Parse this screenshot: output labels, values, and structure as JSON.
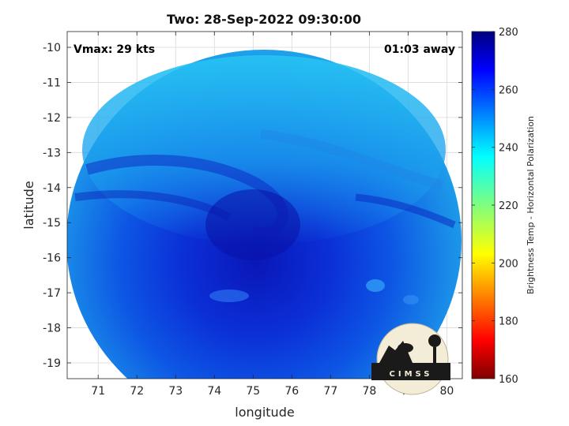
{
  "chart_data": {
    "type": "heatmap",
    "title": "Two: 28-Sep-2022 09:30:00",
    "xlabel": "longitude",
    "ylabel": "latitude",
    "xlim": [
      70.2,
      80.4
    ],
    "ylim": [
      -19.45,
      -9.55
    ],
    "x_ticks": [
      "71",
      "72",
      "73",
      "74",
      "75",
      "76",
      "77",
      "78",
      "79",
      "80"
    ],
    "y_ticks": [
      "-10",
      "-11",
      "-12",
      "-13",
      "-14",
      "-15",
      "-16",
      "-17",
      "-18",
      "-19"
    ],
    "annotations": {
      "left": "Vmax: 29 kts",
      "right": "01:03 away"
    },
    "colorbar": {
      "label": "Brightness Temp - Horizontal Polarization",
      "range": [
        160,
        280
      ],
      "ticks": [
        "160",
        "180",
        "200",
        "220",
        "240",
        "260",
        "280"
      ],
      "colormap": "jet"
    },
    "field": {
      "storm_center_lon": 75.3,
      "storm_center_lat": -14.8,
      "north_region_temp": 242,
      "core_region_temp": 268
    },
    "logo_text": "CIMSS"
  }
}
